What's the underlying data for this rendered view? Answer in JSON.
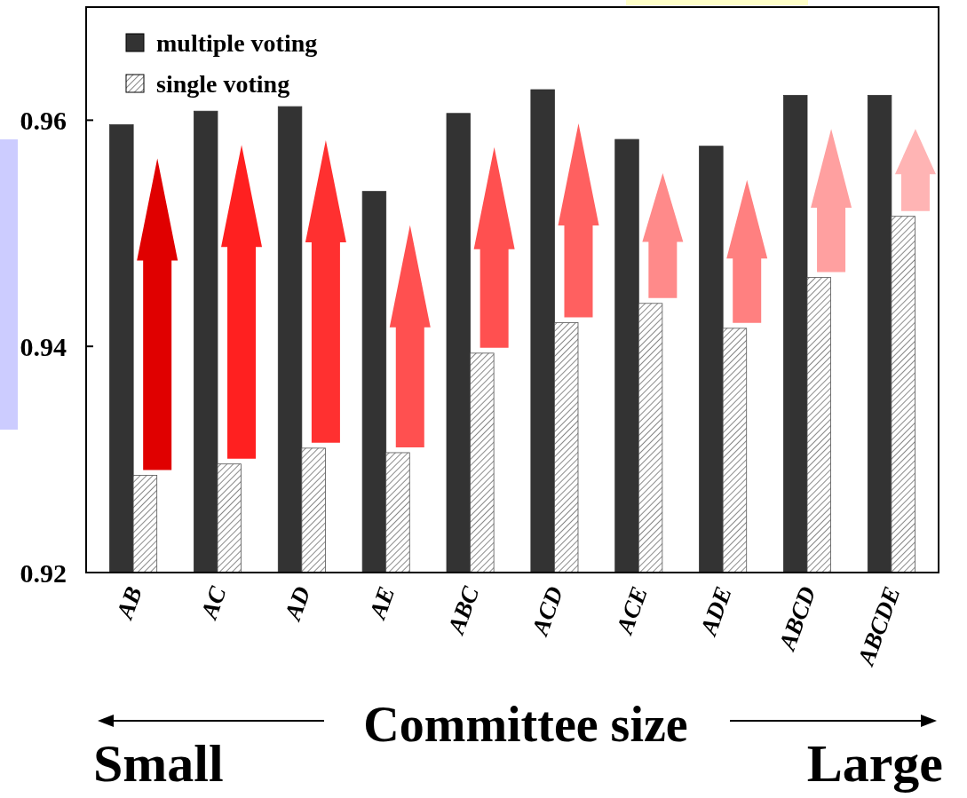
{
  "chart_data": {
    "type": "bar",
    "xlabel": "Committee size",
    "categories": [
      "AB",
      "AC",
      "AD",
      "AE",
      "ABC",
      "ACD",
      "ACE",
      "ADE",
      "ABCD",
      "ABCDE"
    ],
    "series": [
      {
        "name": "multiple voting",
        "color": "#333333",
        "values": [
          0.9596,
          0.9608,
          0.9612,
          0.9537,
          0.9606,
          0.9627,
          0.9583,
          0.9577,
          0.9622,
          0.9622
        ]
      },
      {
        "name": "single voting",
        "color": "#555555",
        "values": [
          0.9286,
          0.9296,
          0.931,
          0.9306,
          0.9394,
          0.9421,
          0.9438,
          0.9416,
          0.9461,
          0.9515
        ]
      }
    ],
    "ylim": [
      0.92,
      0.97
    ],
    "yticks": [
      0.92,
      0.94,
      0.96
    ],
    "legend": "top left",
    "annotations": [
      "Small",
      "Large"
    ]
  }
}
